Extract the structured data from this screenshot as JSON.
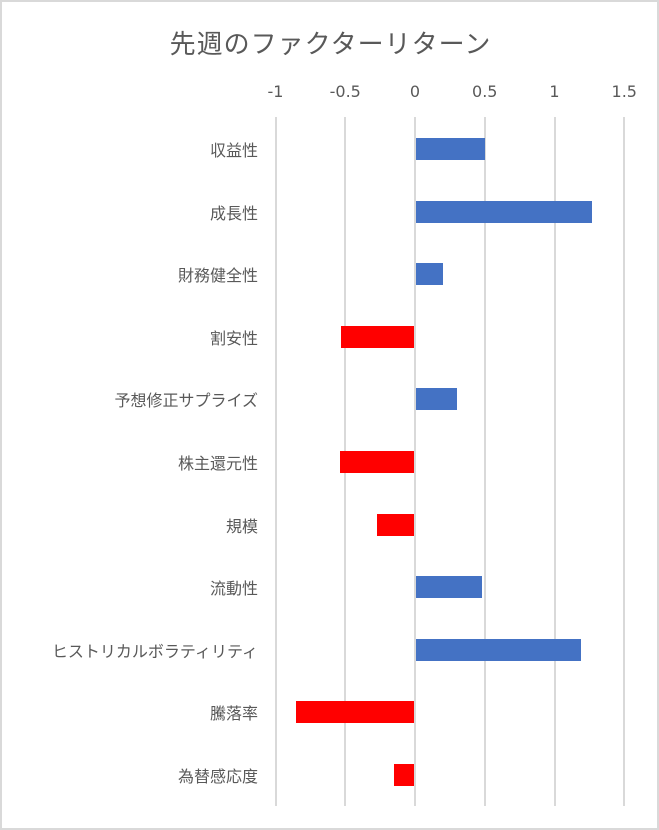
{
  "chart_data": {
    "type": "bar",
    "orientation": "horizontal",
    "title": "先週のファクターリターン",
    "xlabel": "",
    "ylabel": "",
    "xlim": [
      -1,
      1.5
    ],
    "x_ticks": [
      "-1",
      "-0.5",
      "0",
      "0.5",
      "1",
      "1.5"
    ],
    "x_axis_position": "top",
    "grid": true,
    "legend": null,
    "categories": [
      "収益性",
      "成長性",
      "財務健全性",
      "割安性",
      "予想修正サプライズ",
      "株主還元性",
      "規模",
      "流動性",
      "ヒストリカルボラティリティ",
      "騰落率",
      "為替感応度"
    ],
    "values": [
      0.5,
      1.27,
      0.2,
      -0.53,
      0.3,
      -0.54,
      -0.27,
      0.48,
      1.19,
      -0.85,
      -0.15
    ],
    "colors": {
      "positive": "#4472c4",
      "negative": "#ff0000"
    }
  }
}
